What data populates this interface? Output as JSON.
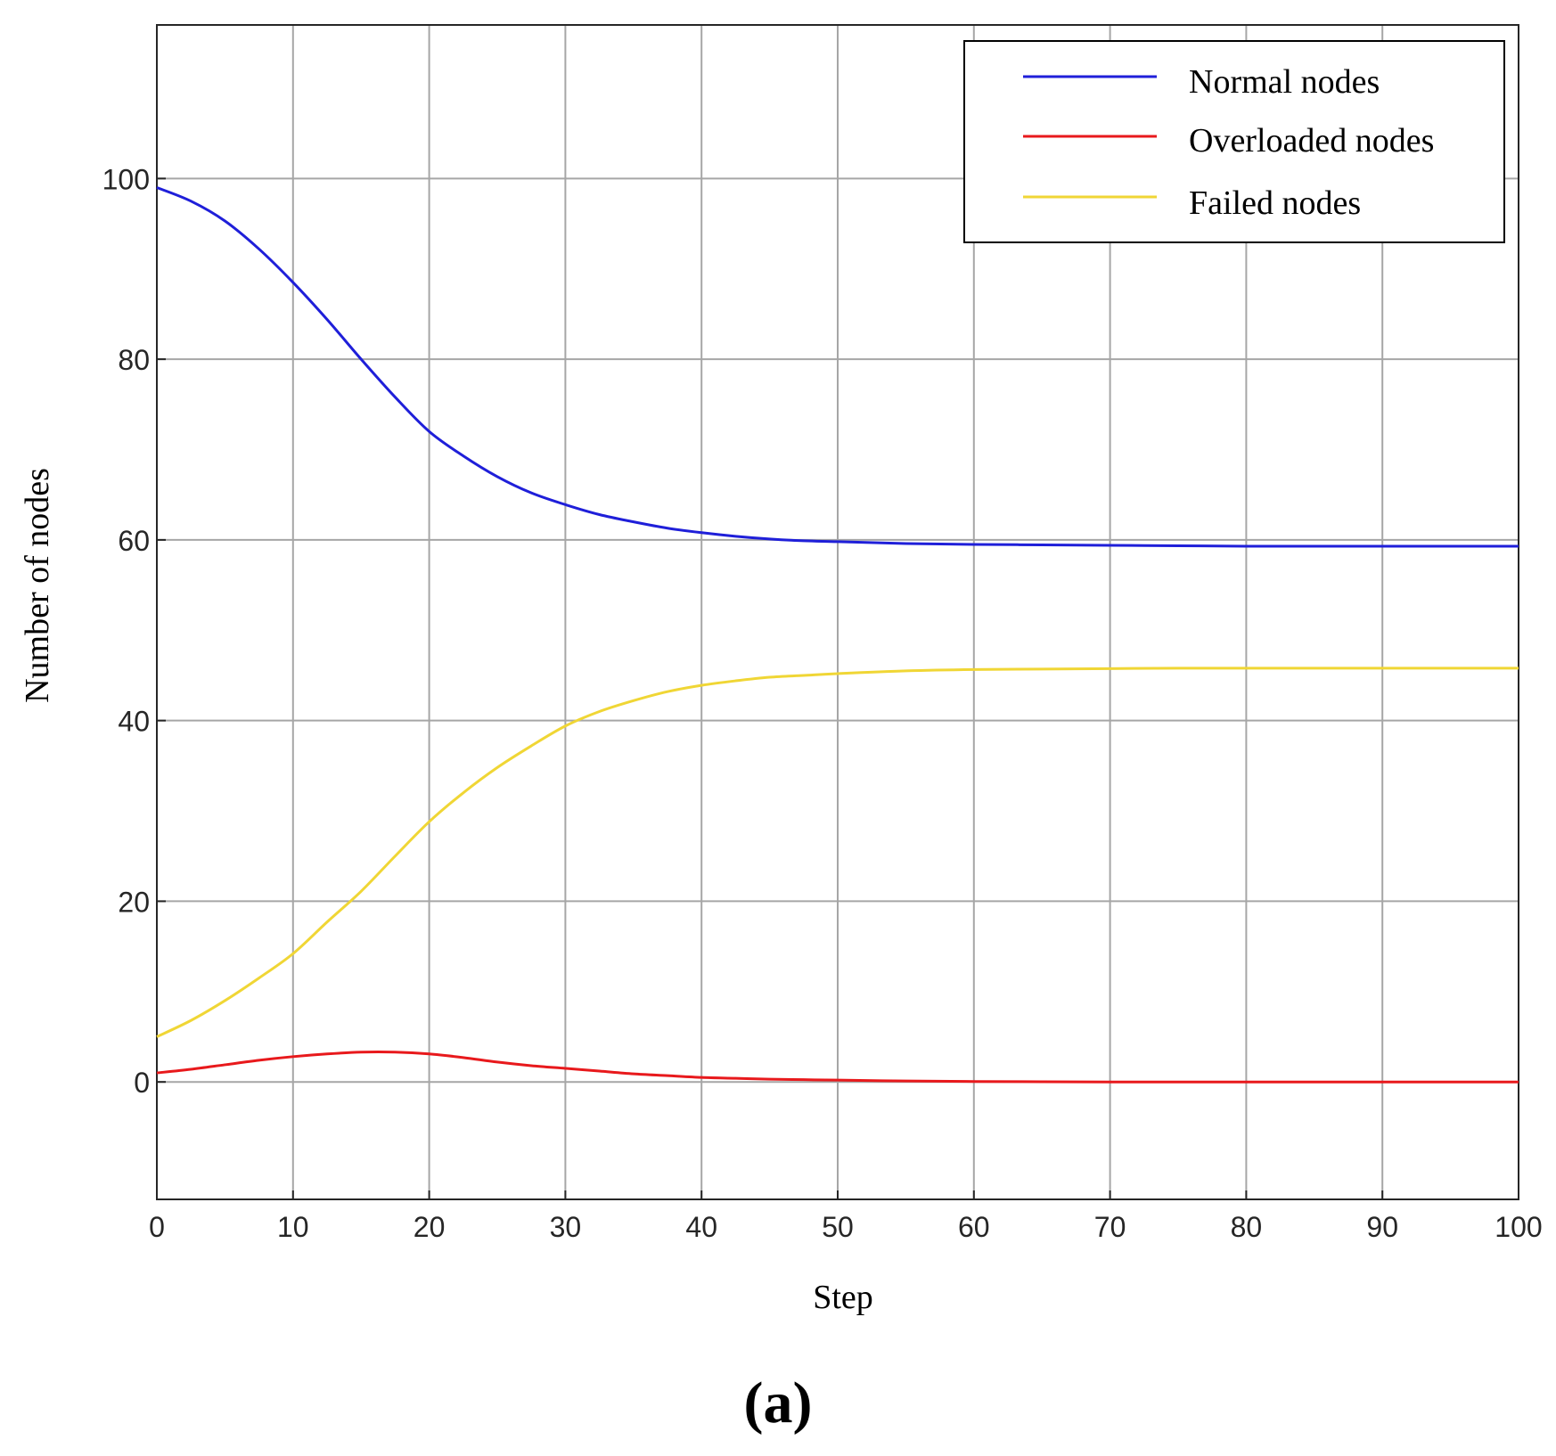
{
  "chart_data": {
    "type": "line",
    "xlabel": "Step",
    "ylabel": "Number of nodes",
    "caption": "(a)",
    "xlim": [
      0,
      100
    ],
    "ylim": [
      -13,
      117
    ],
    "xticks": [
      0,
      10,
      20,
      30,
      40,
      50,
      60,
      70,
      80,
      90,
      100
    ],
    "yticks": [
      0,
      20,
      40,
      60,
      80,
      100
    ],
    "grid": true,
    "legend_position": "top-right",
    "x": [
      0,
      2.5,
      5,
      7.5,
      10,
      12.5,
      15,
      17.5,
      20,
      22.5,
      25,
      27.5,
      30,
      32.5,
      35,
      37.5,
      40,
      42.5,
      45,
      47.5,
      50,
      55,
      60,
      65,
      70,
      75,
      80,
      85,
      90,
      95,
      100
    ],
    "series": [
      {
        "name": "Normal nodes",
        "color": "#1f1fd9",
        "values": [
          99,
          97.5,
          95.3,
          92.2,
          88.5,
          84.4,
          80.0,
          75.8,
          72.0,
          69.3,
          67.0,
          65.2,
          63.9,
          62.8,
          62.0,
          61.3,
          60.8,
          60.4,
          60.1,
          59.9,
          59.8,
          59.6,
          59.5,
          59.45,
          59.4,
          59.35,
          59.3,
          59.3,
          59.3,
          59.3,
          59.3
        ]
      },
      {
        "name": "Overloaded nodes",
        "color": "#e8191c",
        "values": [
          1.0,
          1.4,
          1.9,
          2.4,
          2.8,
          3.1,
          3.3,
          3.3,
          3.1,
          2.7,
          2.2,
          1.8,
          1.5,
          1.2,
          0.9,
          0.7,
          0.5,
          0.4,
          0.3,
          0.25,
          0.2,
          0.1,
          0.05,
          0.02,
          0,
          0,
          0,
          0,
          0,
          0,
          0
        ]
      },
      {
        "name": "Failed nodes",
        "color": "#f0d635",
        "values": [
          5.0,
          6.8,
          9.0,
          11.5,
          14.2,
          17.7,
          21.1,
          25.0,
          28.8,
          32.0,
          34.8,
          37.2,
          39.4,
          41.0,
          42.2,
          43.2,
          43.9,
          44.4,
          44.8,
          45.0,
          45.2,
          45.5,
          45.65,
          45.7,
          45.75,
          45.8,
          45.8,
          45.8,
          45.8,
          45.8,
          45.8
        ]
      }
    ]
  }
}
